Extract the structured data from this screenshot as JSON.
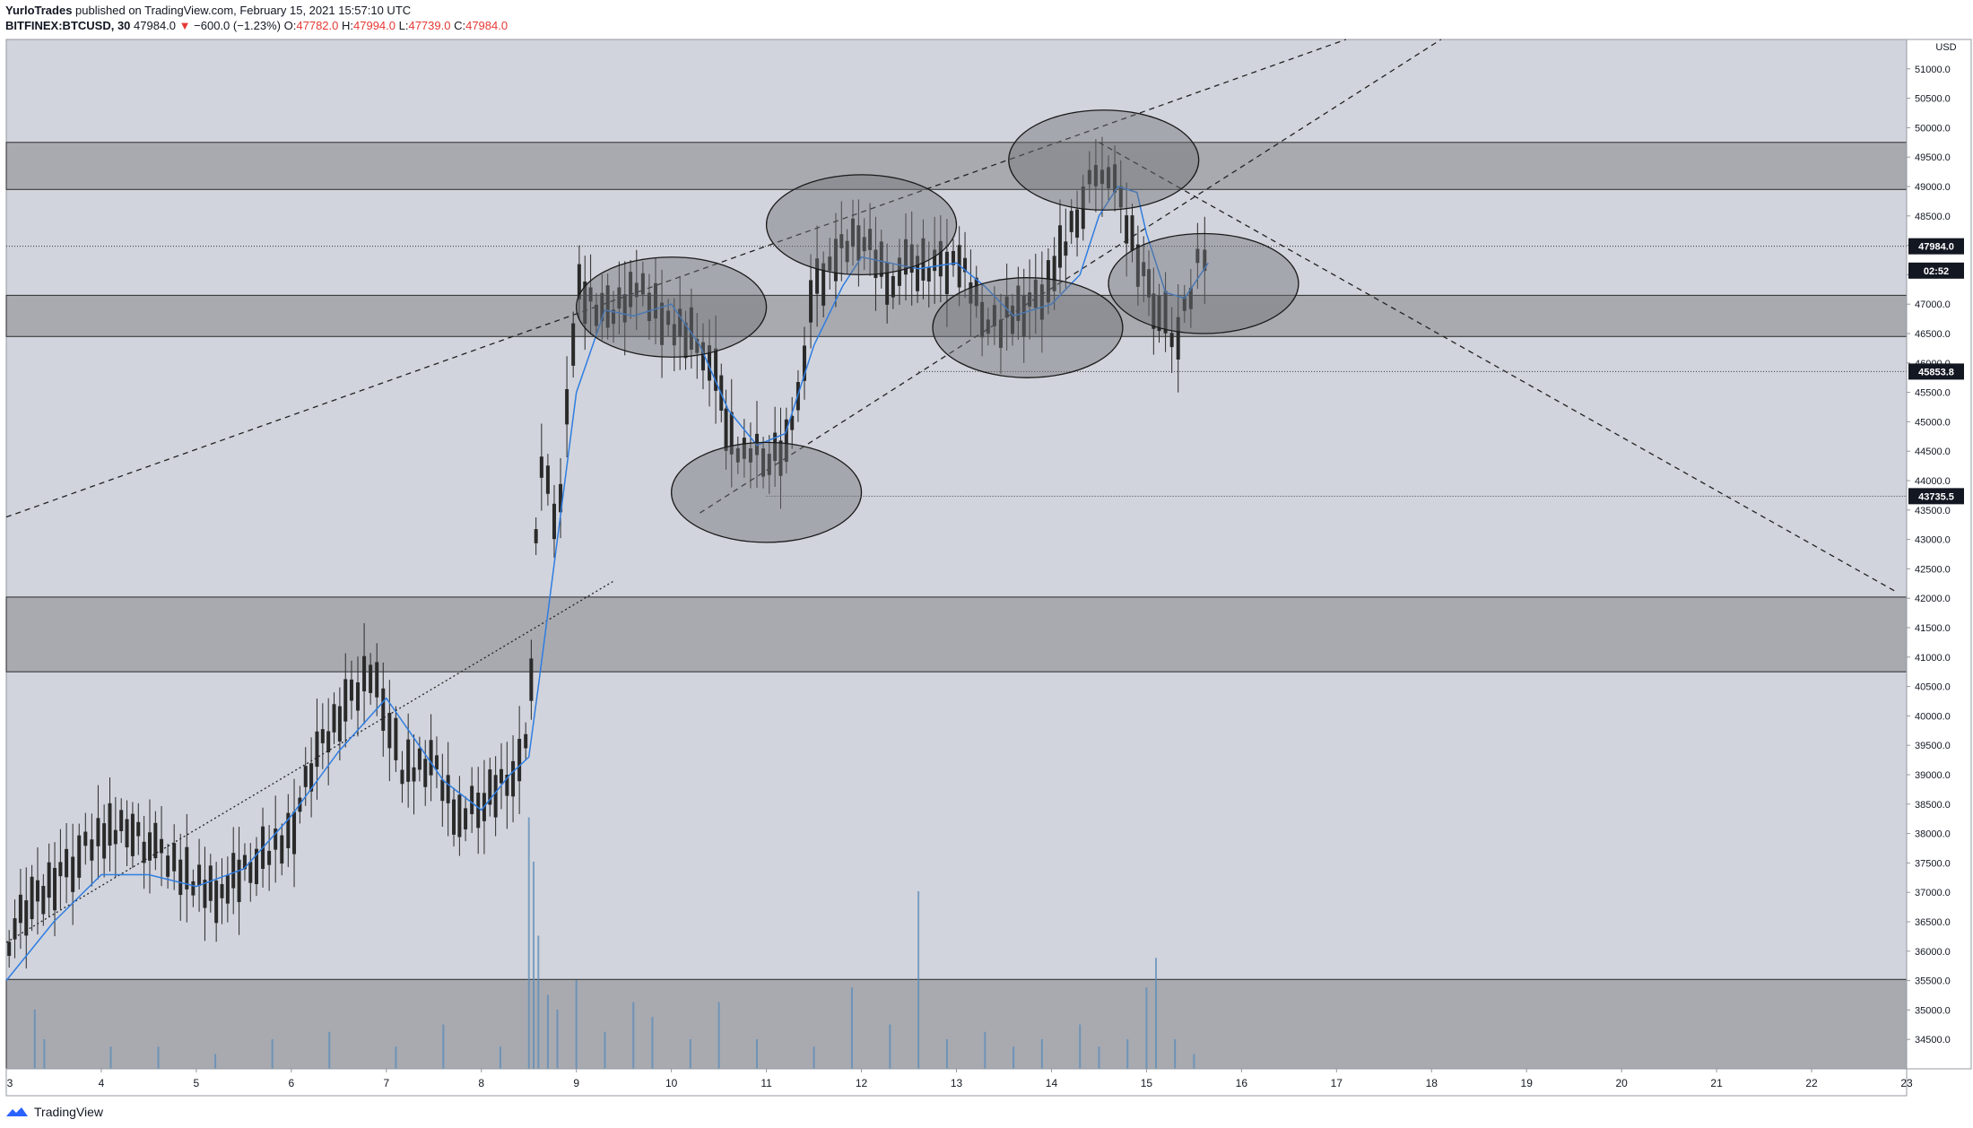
{
  "header": {
    "author": "YurloTrades",
    "published": "published on TradingView.com, February 15, 2021 15:57:10 UTC",
    "symbol": "BITFINEX:BTCUSD, 30",
    "last": "47984.0",
    "arrow": "▼",
    "change": "−600.0 (−1.23%)",
    "o_label": "O:",
    "o_val": "47782.0",
    "h_label": "H:",
    "h_val": "47994.0",
    "l_label": "L:",
    "l_val": "47739.0",
    "c_label": "C:",
    "c_val": "47984.0"
  },
  "footer": {
    "brand": "TradingView"
  },
  "colors": {
    "background": "#d1d4dc",
    "zone": "#a8aab0",
    "candle": "#2a2a2a",
    "ma": "#2f7de1",
    "volume": "#5b8bb8",
    "label_bg": "#131722"
  },
  "chart_data": {
    "type": "candlestick",
    "currency": "USD",
    "ylim": [
      34000,
      51500
    ],
    "xlim": [
      3,
      23
    ],
    "yticks": [
      34500,
      35000,
      35500,
      36000,
      36500,
      37000,
      37500,
      38000,
      38500,
      39000,
      39500,
      40000,
      40500,
      41000,
      41500,
      42000,
      42500,
      43000,
      43500,
      44000,
      44500,
      45000,
      45500,
      46000,
      46500,
      47000,
      47500,
      48000,
      48500,
      49000,
      49500,
      50000,
      50500,
      51000
    ],
    "ytick_labels": [
      "34500.0",
      "35000.0",
      "35500.0",
      "36000.0",
      "36500.0",
      "37000.0",
      "37500.0",
      "38000.0",
      "38500.0",
      "39000.0",
      "39500.0",
      "40000.0",
      "40500.0",
      "41000.0",
      "41500.0",
      "42000.0",
      "42500.0",
      "43000.0",
      "43500.0",
      "44000.0",
      "44500.0",
      "45000.0",
      "45500.0",
      "46000.0",
      "46500.0",
      "47000.0",
      "47500.0",
      "48000.0",
      "48500.0",
      "49000.0",
      "49500.0",
      "50000.0",
      "50500.0",
      "51000.0"
    ],
    "xticks": [
      3,
      4,
      5,
      6,
      7,
      8,
      9,
      10,
      11,
      12,
      13,
      14,
      15,
      16,
      17,
      18,
      19,
      20,
      21,
      22,
      23
    ],
    "xtick_labels": [
      "3",
      "4",
      "5",
      "6",
      "7",
      "8",
      "9",
      "10",
      "11",
      "12",
      "13",
      "14",
      "15",
      "16",
      "17",
      "18",
      "19",
      "20",
      "21",
      "22",
      "23"
    ],
    "price_series": {
      "x": [
        3,
        3.3,
        3.6,
        4,
        4.3,
        4.6,
        5,
        5.3,
        5.6,
        6,
        6.3,
        6.6,
        6.8,
        7,
        7.2,
        7.5,
        7.8,
        8,
        8.3,
        8.5,
        8.55,
        8.6,
        8.8,
        9,
        9.3,
        9.6,
        10,
        10.3,
        10.5,
        10.6,
        10.8,
        11,
        11.3,
        11.5,
        11.7,
        12,
        12.3,
        12.5,
        12.8,
        13,
        13.3,
        13.5,
        13.8,
        14,
        14.3,
        14.5,
        14.7,
        15,
        15.1,
        15.3,
        15.5,
        15.65
      ],
      "y": [
        36200,
        36800,
        37400,
        37900,
        38200,
        37600,
        37200,
        37000,
        37500,
        38100,
        39400,
        40300,
        40800,
        40100,
        39000,
        39200,
        38200,
        38500,
        39100,
        39400,
        41500,
        44500,
        43200,
        47200,
        46800,
        47300,
        46600,
        46500,
        45500,
        44800,
        44500,
        44400,
        44800,
        47300,
        47700,
        48200,
        47500,
        47600,
        47700,
        47800,
        46800,
        46700,
        47000,
        47400,
        48600,
        49500,
        48800,
        47400,
        47000,
        46400,
        47500,
        47900
      ]
    },
    "ma_series": {
      "x": [
        3,
        3.5,
        4,
        4.5,
        5,
        5.5,
        6,
        6.5,
        7,
        7.3,
        7.6,
        8,
        8.3,
        8.5,
        8.6,
        8.8,
        9,
        9.3,
        9.6,
        10,
        10.3,
        10.6,
        10.9,
        11.2,
        11.5,
        11.8,
        12,
        12.3,
        12.6,
        13,
        13.3,
        13.6,
        14,
        14.3,
        14.5,
        14.7,
        14.9,
        15,
        15.2,
        15.4,
        15.65
      ],
      "y": [
        35500,
        36500,
        37300,
        37300,
        37100,
        37400,
        38300,
        39400,
        40300,
        39600,
        38900,
        38400,
        39000,
        39300,
        40500,
        43000,
        45500,
        46900,
        46800,
        47000,
        46300,
        45200,
        44600,
        44800,
        46300,
        47300,
        47800,
        47700,
        47600,
        47700,
        47300,
        46800,
        47000,
        47500,
        48500,
        49000,
        48900,
        48200,
        47200,
        47100,
        47700
      ]
    },
    "zones": [
      {
        "label": "zone-1",
        "y_low": 48950,
        "y_high": 49750
      },
      {
        "label": "zone-2",
        "y_low": 46450,
        "y_high": 47150
      },
      {
        "label": "zone-3",
        "y_low": 40750,
        "y_high": 42020
      },
      {
        "label": "zone-4",
        "y_low": 34000,
        "y_high": 35520
      }
    ],
    "circles": [
      {
        "cx": 10.0,
        "cy": 46950,
        "rx": 1.0,
        "ry": 850
      },
      {
        "cx": 11.0,
        "cy": 43800,
        "rx": 1.0,
        "ry": 850
      },
      {
        "cx": 12.0,
        "cy": 48350,
        "rx": 1.0,
        "ry": 850
      },
      {
        "cx": 13.75,
        "cy": 46600,
        "rx": 1.0,
        "ry": 850
      },
      {
        "cx": 14.55,
        "cy": 49450,
        "rx": 1.0,
        "ry": 850
      },
      {
        "cx": 15.6,
        "cy": 47350,
        "rx": 1.0,
        "ry": 850
      }
    ],
    "trendlines": [
      {
        "x1": 3,
        "y1": 43380,
        "x2": 17.1,
        "y2": 51500,
        "style": "dashed"
      },
      {
        "x1": 3,
        "y1": 36150,
        "x2": 9.4,
        "y2": 42300,
        "style": "dotted"
      },
      {
        "x1": 10.3,
        "y1": 43450,
        "x2": 18.1,
        "y2": 51500,
        "style": "dashed"
      },
      {
        "x1": 14.5,
        "y1": 49750,
        "x2": 22.9,
        "y2": 42100,
        "style": "dashed"
      }
    ],
    "hlines": [
      {
        "y": 47984,
        "x_start": 3
      },
      {
        "y": 45853.8,
        "x_start": 12.6
      },
      {
        "y": 43735.5,
        "x_start": 11.0
      }
    ],
    "price_labels": [
      {
        "y": 47984,
        "text": "47984.0"
      },
      {
        "y": 47570,
        "text": "02:52"
      },
      {
        "y": 45853.8,
        "text": "45853.8"
      },
      {
        "y": 43735.5,
        "text": "43735.5"
      }
    ],
    "volume": {
      "x": [
        3.3,
        3.4,
        4.1,
        4.6,
        5.2,
        5.8,
        6.4,
        7.1,
        7.6,
        8.2,
        8.5,
        8.55,
        8.6,
        8.7,
        8.8,
        9.0,
        9.3,
        9.6,
        9.8,
        10.2,
        10.5,
        10.9,
        11.5,
        11.9,
        12.3,
        12.6,
        12.9,
        13.3,
        13.6,
        13.9,
        14.3,
        14.5,
        14.8,
        15.0,
        15.1,
        15.3,
        15.5
      ],
      "y": [
        8,
        4,
        3,
        3,
        2,
        4,
        5,
        3,
        6,
        3,
        34,
        28,
        18,
        10,
        8,
        12,
        5,
        9,
        7,
        4,
        9,
        4,
        3,
        11,
        6,
        24,
        4,
        5,
        3,
        4,
        6,
        3,
        4,
        11,
        15,
        4,
        2
      ]
    }
  }
}
